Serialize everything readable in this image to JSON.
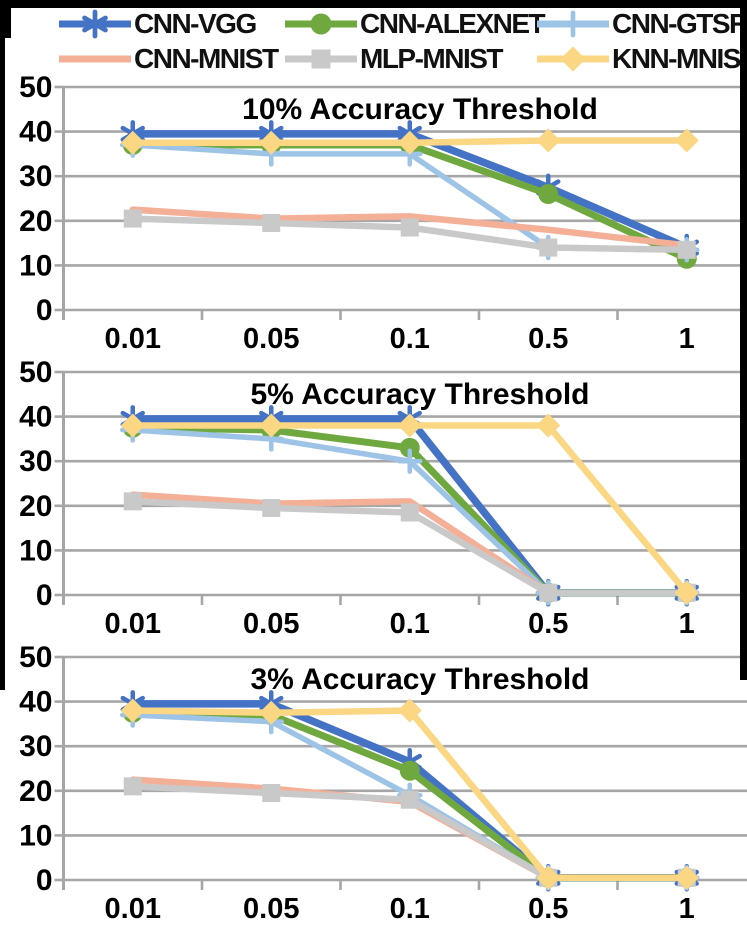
{
  "figure": {
    "background": "#FFFFFF",
    "border_color": "#000000",
    "gridline_color": "#A6A6A6",
    "axis_color": "#A6A6A6",
    "text_color": "#000000"
  },
  "legend": {
    "position": "top",
    "items": [
      {
        "label": "CNN-VGG"
      },
      {
        "label": "CNN-ALEXNET"
      },
      {
        "label": "CNN-GTSRB"
      },
      {
        "label": "CNN-MNIST"
      },
      {
        "label": "MLP-MNIST"
      },
      {
        "label": "KNN-MNIST"
      }
    ]
  },
  "series_styles": {
    "CNN-VGG": {
      "color": "#4472C4",
      "marker": "asterisk",
      "line_width": 7.5
    },
    "CNN-ALEXNET": {
      "color": "#6FA83F",
      "marker": "circle",
      "line_width": 7
    },
    "CNN-GTSRB": {
      "color": "#9DC3E6",
      "marker": "plus",
      "line_width": 5.5
    },
    "CNN-MNIST": {
      "color": "#F4AF97",
      "marker": "none",
      "line_width": 6.5
    },
    "MLP-MNIST": {
      "color": "#C9C9C9",
      "marker": "square",
      "line_width": 6.5
    },
    "KNN-MNIST": {
      "color": "#FBD683",
      "marker": "diamond",
      "line_width": 6.5
    }
  },
  "chart_data": [
    {
      "type": "line",
      "title": "10% Accuracy Threshold",
      "xlabel": "",
      "ylabel": "",
      "ylim": [
        0,
        50
      ],
      "yticks": [
        0,
        10,
        20,
        30,
        40,
        50
      ],
      "grid": true,
      "categories": [
        "0.01",
        "0.05",
        "0.1",
        "0.5",
        "1"
      ],
      "series": [
        {
          "name": "CNN-VGG",
          "values": [
            39.5,
            39.5,
            39.5,
            27.5,
            14
          ]
        },
        {
          "name": "CNN-ALEXNET",
          "values": [
            37,
            37,
            37,
            26,
            11.5
          ]
        },
        {
          "name": "CNN-GTSRB",
          "values": [
            37,
            35,
            35,
            14,
            13.5
          ]
        },
        {
          "name": "CNN-MNIST",
          "values": [
            22.5,
            20.5,
            21,
            18,
            14.5
          ]
        },
        {
          "name": "MLP-MNIST",
          "values": [
            20.5,
            19.5,
            18.5,
            14,
            13.5
          ]
        },
        {
          "name": "KNN-MNIST",
          "values": [
            37.5,
            37.5,
            37.5,
            38,
            38
          ]
        }
      ]
    },
    {
      "type": "line",
      "title": "5% Accuracy Threshold",
      "xlabel": "",
      "ylabel": "",
      "ylim": [
        0,
        50
      ],
      "yticks": [
        0,
        10,
        20,
        30,
        40,
        50
      ],
      "grid": true,
      "categories": [
        "0.01",
        "0.05",
        "0.1",
        "0.5",
        "1"
      ],
      "series": [
        {
          "name": "CNN-VGG",
          "values": [
            39.5,
            39.5,
            39.5,
            0.5,
            0.5
          ]
        },
        {
          "name": "CNN-ALEXNET",
          "values": [
            37.5,
            37,
            33,
            0.5,
            0.5
          ]
        },
        {
          "name": "CNN-GTSRB",
          "values": [
            37,
            35,
            30,
            0.5,
            0.5
          ]
        },
        {
          "name": "CNN-MNIST",
          "values": [
            22.5,
            20.5,
            21,
            0.5,
            0.5
          ]
        },
        {
          "name": "MLP-MNIST",
          "values": [
            21,
            19.5,
            18.5,
            0.5,
            0.5
          ]
        },
        {
          "name": "KNN-MNIST",
          "values": [
            38,
            38,
            38,
            38,
            0.5
          ]
        }
      ]
    },
    {
      "type": "line",
      "title": "3% Accuracy Threshold",
      "xlabel": "",
      "ylabel": "",
      "ylim": [
        0,
        50
      ],
      "yticks": [
        0,
        10,
        20,
        30,
        40,
        50
      ],
      "grid": true,
      "categories": [
        "0.01",
        "0.05",
        "0.1",
        "0.5",
        "1"
      ],
      "series": [
        {
          "name": "CNN-VGG",
          "values": [
            39.5,
            39.5,
            26.5,
            0.5,
            0.5
          ]
        },
        {
          "name": "CNN-ALEXNET",
          "values": [
            37.5,
            37,
            24.5,
            0.5,
            0.5
          ]
        },
        {
          "name": "CNN-GTSRB",
          "values": [
            37,
            35.5,
            19,
            0.5,
            0.5
          ]
        },
        {
          "name": "CNN-MNIST",
          "values": [
            22.5,
            20.5,
            17.5,
            0.5,
            0.5
          ]
        },
        {
          "name": "MLP-MNIST",
          "values": [
            21,
            19.5,
            18,
            0.5,
            0.5
          ]
        },
        {
          "name": "KNN-MNIST",
          "values": [
            38,
            37.5,
            38,
            0.5,
            0.5
          ]
        }
      ]
    }
  ]
}
